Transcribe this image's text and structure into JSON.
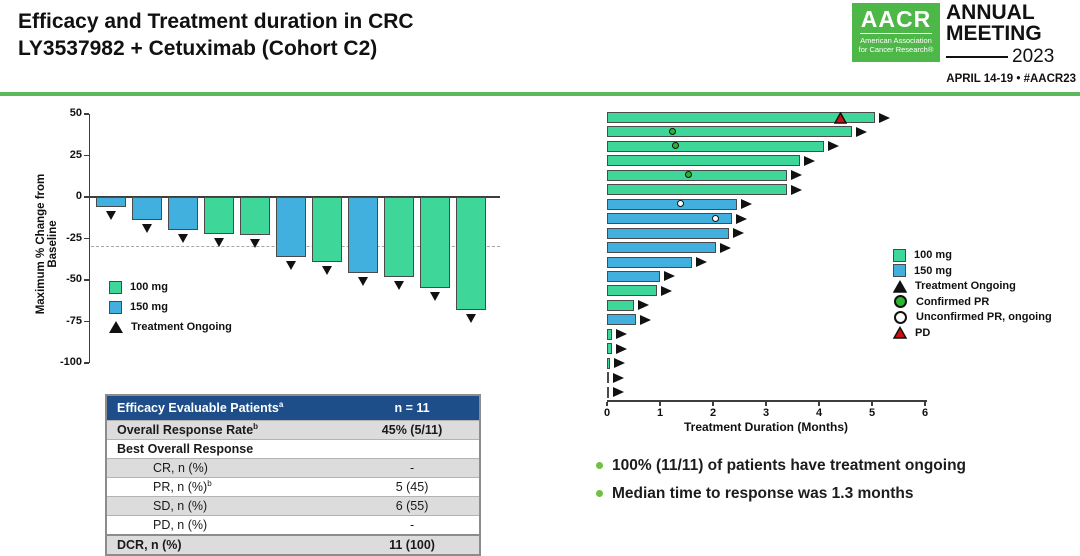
{
  "slide": {
    "title_line1": "Efficacy and Treatment duration in CRC",
    "title_line2": "LY3537982 + Cetuximab (Cohort C2)",
    "accent_rule_color": "#5cb85c"
  },
  "header": {
    "logo": {
      "acronym": "AACR",
      "org_line1": "American Association",
      "org_line2": "for Cancer Research®",
      "event_line1": "ANNUAL",
      "event_line2": "MEETING",
      "event_year": "2023",
      "dates": "APRIL 14-19 • #AACR23",
      "green": "#4db748"
    }
  },
  "colors": {
    "dose_100mg": "#3fd69a",
    "dose_150mg": "#41b0df",
    "confirmed_pr_fill": "#2db430",
    "unconfirmed_pr_fill": "#ffffff",
    "pd_red": "#cf1010",
    "table_header_blue": "#1d4e89",
    "row_gray": "#dcdcdc",
    "bullet_green": "#71bf44",
    "marker_black": "#111111"
  },
  "chart_data": [
    {
      "type": "bar",
      "name": "waterfall",
      "title": "",
      "xlabel": "",
      "ylabel": "Maximum % Change from Baseline",
      "ylim": [
        -100,
        50
      ],
      "yticks": [
        50,
        25,
        0,
        -25,
        -50,
        -75,
        -100
      ],
      "reference_line_y": -30,
      "grid": false,
      "bars": [
        {
          "value": -6,
          "dose": "150 mg",
          "ongoing": true
        },
        {
          "value": -14,
          "dose": "150 mg",
          "ongoing": true
        },
        {
          "value": -20,
          "dose": "150 mg",
          "ongoing": true
        },
        {
          "value": -22,
          "dose": "100 mg",
          "ongoing": true
        },
        {
          "value": -23,
          "dose": "100 mg",
          "ongoing": true
        },
        {
          "value": -36,
          "dose": "150 mg",
          "ongoing": true
        },
        {
          "value": -39,
          "dose": "100 mg",
          "ongoing": true
        },
        {
          "value": -46,
          "dose": "150 mg",
          "ongoing": true
        },
        {
          "value": -48,
          "dose": "100 mg",
          "ongoing": true
        },
        {
          "value": -55,
          "dose": "100 mg",
          "ongoing": true
        },
        {
          "value": -68,
          "dose": "100 mg",
          "ongoing": true
        }
      ],
      "legend": [
        {
          "label": "100 mg",
          "swatch": "square",
          "color": "#3fd69a"
        },
        {
          "label": "150 mg",
          "swatch": "square",
          "color": "#41b0df"
        },
        {
          "label": "Treatment Ongoing",
          "swatch": "triangle-up",
          "color": "#111111"
        }
      ],
      "legend_position": "inside-left"
    },
    {
      "type": "bar",
      "name": "swimmer",
      "orientation": "horizontal",
      "title": "",
      "xlabel": "Treatment Duration (Months)",
      "ylabel": "",
      "xlim": [
        0,
        6
      ],
      "xticks": [
        0,
        1,
        2,
        3,
        4,
        5,
        6
      ],
      "grid": false,
      "bars": [
        {
          "duration": 5.05,
          "dose": "100 mg",
          "ongoing": true,
          "marker": {
            "type": "PD",
            "x": 4.4
          }
        },
        {
          "duration": 4.62,
          "dose": "100 mg",
          "ongoing": true,
          "marker": {
            "type": "Confirmed PR",
            "x": 1.25
          }
        },
        {
          "duration": 4.1,
          "dose": "100 mg",
          "ongoing": true,
          "marker": {
            "type": "Confirmed PR",
            "x": 1.3
          }
        },
        {
          "duration": 3.65,
          "dose": "100 mg",
          "ongoing": true,
          "marker": null
        },
        {
          "duration": 3.4,
          "dose": "100 mg",
          "ongoing": true,
          "marker": {
            "type": "Confirmed PR",
            "x": 1.55
          }
        },
        {
          "duration": 3.4,
          "dose": "100 mg",
          "ongoing": true,
          "marker": null
        },
        {
          "duration": 2.45,
          "dose": "150 mg",
          "ongoing": true,
          "marker": {
            "type": "Unconfirmed PR, ongoing",
            "x": 1.4
          }
        },
        {
          "duration": 2.35,
          "dose": "150 mg",
          "ongoing": true,
          "marker": {
            "type": "Unconfirmed PR, ongoing",
            "x": 2.05
          }
        },
        {
          "duration": 2.3,
          "dose": "150 mg",
          "ongoing": true,
          "marker": null
        },
        {
          "duration": 2.05,
          "dose": "150 mg",
          "ongoing": true,
          "marker": null
        },
        {
          "duration": 1.6,
          "dose": "150 mg",
          "ongoing": true,
          "marker": null
        },
        {
          "duration": 1.0,
          "dose": "150 mg",
          "ongoing": true,
          "marker": null
        },
        {
          "duration": 0.95,
          "dose": "100 mg",
          "ongoing": true,
          "marker": null
        },
        {
          "duration": 0.5,
          "dose": "100 mg",
          "ongoing": true,
          "marker": null
        },
        {
          "duration": 0.55,
          "dose": "150 mg",
          "ongoing": true,
          "marker": null
        },
        {
          "duration": 0.1,
          "dose": "100 mg",
          "ongoing": true,
          "marker": null
        },
        {
          "duration": 0.1,
          "dose": "100 mg",
          "ongoing": true,
          "marker": null
        },
        {
          "duration": 0.05,
          "dose": "100 mg",
          "ongoing": true,
          "marker": null
        },
        {
          "duration": 0.02,
          "dose": "100 mg",
          "ongoing": true,
          "marker": null
        },
        {
          "duration": 0.02,
          "dose": "100 mg",
          "ongoing": true,
          "marker": null
        }
      ],
      "legend": [
        {
          "label": "100 mg",
          "swatch": "square",
          "color": "#3fd69a"
        },
        {
          "label": "150 mg",
          "swatch": "square",
          "color": "#41b0df"
        },
        {
          "label": "Treatment Ongoing",
          "swatch": "triangle-up",
          "color": "#111111"
        },
        {
          "label": "Confirmed PR",
          "swatch": "circle",
          "color": "#2db430"
        },
        {
          "label": "Unconfirmed PR, ongoing",
          "swatch": "circle",
          "color": "#ffffff"
        },
        {
          "label": "PD",
          "swatch": "triangle-up",
          "color": "#cf1010"
        }
      ],
      "legend_position": "right"
    }
  ],
  "table": {
    "header": {
      "label": "Efficacy Evaluable Patients",
      "sup": "a",
      "value": "n = 11"
    },
    "rows": [
      {
        "label": "Overall Response Rate",
        "sup": "b",
        "value": "45% (5/11)",
        "bold": true,
        "indent": false,
        "shade": "gray"
      },
      {
        "label": "Best Overall Response",
        "sup": "",
        "value": "",
        "bold": true,
        "indent": false,
        "shade": "white"
      },
      {
        "label": "CR, n (%)",
        "sup": "",
        "value": "-",
        "bold": false,
        "indent": true,
        "shade": "gray"
      },
      {
        "label": "PR, n (%)",
        "sup": "b",
        "value": "5 (45)",
        "bold": false,
        "indent": true,
        "shade": "white"
      },
      {
        "label": "SD, n (%)",
        "sup": "",
        "value": "6 (55)",
        "bold": false,
        "indent": true,
        "shade": "gray"
      },
      {
        "label": "PD, n (%)",
        "sup": "",
        "value": "-",
        "bold": false,
        "indent": true,
        "shade": "white"
      },
      {
        "label": "DCR, n (%)",
        "sup": "",
        "value": "11 (100)",
        "bold": true,
        "indent": false,
        "shade": "gray",
        "dcr": true
      }
    ]
  },
  "bullets": [
    {
      "text": "100% (11/11) of patients have treatment ongoing"
    },
    {
      "text": "Median time to response was 1.3 months"
    }
  ]
}
